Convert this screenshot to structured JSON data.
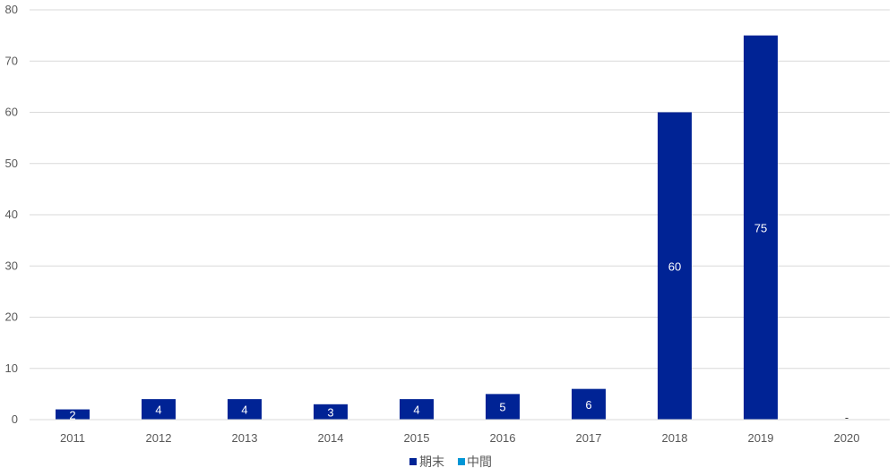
{
  "chart_data": {
    "type": "bar",
    "categories": [
      "2011",
      "2012",
      "2013",
      "2014",
      "2015",
      "2016",
      "2017",
      "2018",
      "2019",
      "2020"
    ],
    "series": [
      {
        "name": "期末",
        "color": "#002395",
        "values": [
          2,
          4,
          4,
          3,
          4,
          5,
          6,
          60,
          75,
          0
        ],
        "labels": [
          "2",
          "4",
          "4",
          "3",
          "4",
          "5",
          "6",
          "60",
          "75",
          "-"
        ]
      },
      {
        "name": "中間",
        "color": "#0096d6",
        "values": [
          0,
          0,
          0,
          0,
          0,
          0,
          0,
          0,
          0,
          0
        ]
      }
    ],
    "ylim": [
      0,
      80
    ],
    "yticks": [
      0,
      10,
      20,
      30,
      40,
      50,
      60,
      70,
      80
    ],
    "stacked": true,
    "grid": true,
    "legend_position": "bottom",
    "gridline_color": "#d9d9d9",
    "label_color_inside": "#ffffff",
    "label_color_outside": "#404040"
  }
}
